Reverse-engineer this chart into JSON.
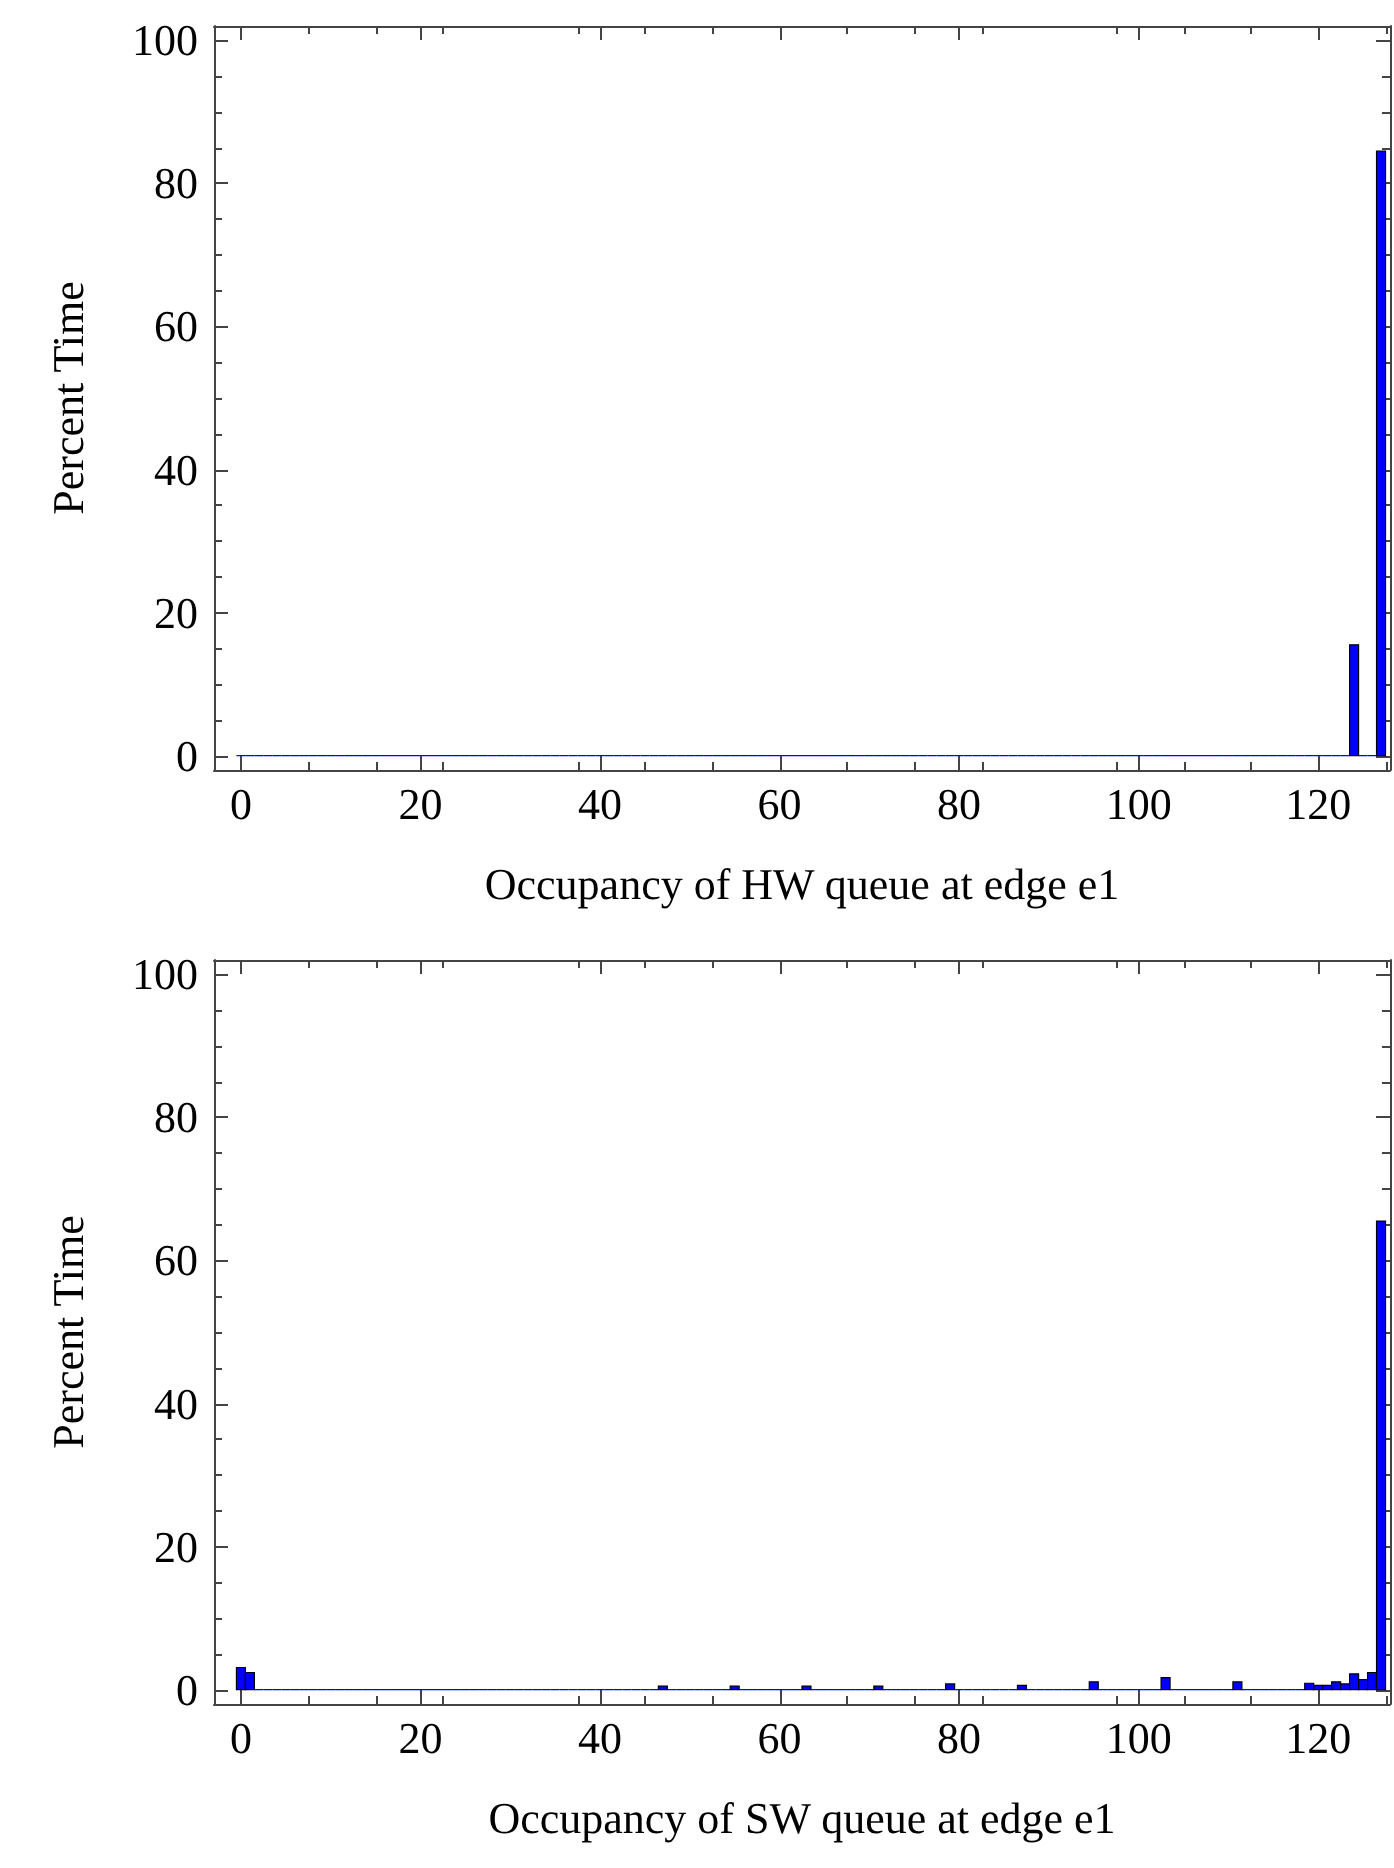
{
  "chart_data": [
    {
      "type": "histogram",
      "xlabel": "Occupancy of HW queue at edge e1",
      "ylabel": "Percent Time",
      "color": "#0000ff",
      "bins": [
        -0.5,
        0.5,
        1.5,
        2.5,
        3.5,
        4.5,
        5.5,
        6.5,
        7.5,
        8.5,
        9.5,
        10.5,
        11.5,
        12.5,
        13.5,
        14.5,
        15.5,
        16.5,
        17.5,
        18.5,
        19.5,
        20.5,
        21.5,
        22.5,
        23.5,
        24.5,
        25.5,
        26.5,
        27.5,
        28.5,
        29.5,
        30.5,
        31.5,
        32.5,
        33.5,
        34.5,
        35.5,
        36.5,
        37.5,
        38.5,
        39.5,
        40.5,
        41.5,
        42.5,
        43.5,
        44.5,
        45.5,
        46.5,
        47.5,
        48.5,
        49.5,
        50.5,
        51.5,
        52.5,
        53.5,
        54.5,
        55.5,
        56.5,
        57.5,
        58.5,
        59.5,
        60.5,
        61.5,
        62.5,
        63.5,
        64.5,
        65.5,
        66.5,
        67.5,
        68.5,
        69.5,
        70.5,
        71.5,
        72.5,
        73.5,
        74.5,
        75.5,
        76.5,
        77.5,
        78.5,
        79.5,
        80.5,
        81.5,
        82.5,
        83.5,
        84.5,
        85.5,
        86.5,
        87.5,
        88.5,
        89.5,
        90.5,
        91.5,
        92.5,
        93.5,
        94.5,
        95.5,
        96.5,
        97.5,
        98.5,
        99.5,
        100.5,
        101.5,
        102.5,
        103.5,
        104.5,
        105.5,
        106.5,
        107.5,
        108.5,
        109.5,
        110.5,
        111.5,
        112.5,
        113.5,
        114.5,
        115.5,
        116.5,
        117.5,
        118.5,
        119.5,
        120.5,
        121.5,
        122.5,
        123.5,
        124.5,
        125.5,
        126.5,
        127.5
      ],
      "values": [
        0,
        0,
        0,
        0,
        0,
        0,
        0,
        0,
        0,
        0,
        0,
        0,
        0,
        0,
        0,
        0,
        0,
        0,
        0,
        0,
        0,
        0,
        0,
        0,
        0,
        0,
        0,
        0,
        0,
        0,
        0,
        0,
        0,
        0,
        0,
        0,
        0,
        0,
        0,
        0,
        0,
        0,
        0,
        0,
        0,
        0,
        0,
        0,
        0,
        0,
        0,
        0,
        0,
        0,
        0,
        0,
        0,
        0,
        0,
        0,
        0,
        0,
        0,
        0,
        0,
        0,
        0,
        0,
        0,
        0,
        0,
        0,
        0,
        0,
        0,
        0,
        0,
        0,
        0,
        0,
        0,
        0,
        0,
        0,
        0,
        0,
        0,
        0,
        0,
        0,
        0,
        0,
        0,
        0,
        0,
        0,
        0,
        0,
        0,
        0,
        0,
        0,
        0,
        0,
        0,
        0,
        0,
        0,
        0,
        0,
        0,
        0,
        0,
        0,
        0,
        0,
        0,
        0,
        0,
        0,
        0,
        0,
        0,
        0,
        15.5,
        0,
        0,
        84.5
      ],
      "xlim": [
        -3,
        128
      ],
      "xticks": [
        0,
        20,
        40,
        60,
        80,
        100,
        120
      ],
      "ylim": [
        -2,
        102
      ],
      "yticks": [
        0,
        20,
        40,
        60,
        80,
        100
      ]
    },
    {
      "type": "histogram",
      "xlabel": "Occupancy of SW queue at edge e1",
      "ylabel": "Percent Time",
      "color": "#0000ff",
      "bins": [
        -0.5,
        0.5,
        1.5,
        2.5,
        3.5,
        4.5,
        5.5,
        6.5,
        7.5,
        8.5,
        9.5,
        10.5,
        11.5,
        12.5,
        13.5,
        14.5,
        15.5,
        16.5,
        17.5,
        18.5,
        19.5,
        20.5,
        21.5,
        22.5,
        23.5,
        24.5,
        25.5,
        26.5,
        27.5,
        28.5,
        29.5,
        30.5,
        31.5,
        32.5,
        33.5,
        34.5,
        35.5,
        36.5,
        37.5,
        38.5,
        39.5,
        40.5,
        41.5,
        42.5,
        43.5,
        44.5,
        45.5,
        46.5,
        47.5,
        48.5,
        49.5,
        50.5,
        51.5,
        52.5,
        53.5,
        54.5,
        55.5,
        56.5,
        57.5,
        58.5,
        59.5,
        60.5,
        61.5,
        62.5,
        63.5,
        64.5,
        65.5,
        66.5,
        67.5,
        68.5,
        69.5,
        70.5,
        71.5,
        72.5,
        73.5,
        74.5,
        75.5,
        76.5,
        77.5,
        78.5,
        79.5,
        80.5,
        81.5,
        82.5,
        83.5,
        84.5,
        85.5,
        86.5,
        87.5,
        88.5,
        89.5,
        90.5,
        91.5,
        92.5,
        93.5,
        94.5,
        95.5,
        96.5,
        97.5,
        98.5,
        99.5,
        100.5,
        101.5,
        102.5,
        103.5,
        104.5,
        105.5,
        106.5,
        107.5,
        108.5,
        109.5,
        110.5,
        111.5,
        112.5,
        113.5,
        114.5,
        115.5,
        116.5,
        117.5,
        118.5,
        119.5,
        120.5,
        121.5,
        122.5,
        123.5,
        124.5,
        125.5,
        126.5,
        127.5
      ],
      "values": [
        3.1,
        2.4,
        0,
        0,
        0,
        0,
        0,
        0,
        0,
        0,
        0,
        0,
        0,
        0,
        0,
        0,
        0,
        0,
        0,
        0,
        0,
        0,
        0,
        0,
        0,
        0,
        0,
        0,
        0,
        0,
        0,
        0,
        0,
        0,
        0,
        0,
        0,
        0,
        0,
        0,
        0,
        0,
        0,
        0,
        0,
        0,
        0,
        0.5,
        0,
        0,
        0,
        0,
        0,
        0,
        0,
        0.5,
        0,
        0,
        0,
        0,
        0,
        0,
        0,
        0.5,
        0,
        0,
        0,
        0,
        0,
        0,
        0,
        0.5,
        0,
        0,
        0,
        0,
        0,
        0,
        0,
        0.8,
        0,
        0,
        0,
        0,
        0,
        0,
        0,
        0.6,
        0,
        0,
        0,
        0,
        0,
        0,
        0,
        1.1,
        0,
        0,
        0,
        0,
        0,
        0,
        0,
        1.7,
        0,
        0,
        0,
        0,
        0,
        0,
        0,
        1.1,
        0,
        0,
        0,
        0,
        0,
        0,
        0,
        0.9,
        0.6,
        0.6,
        1.1,
        0.8,
        2.2,
        1.4,
        2.4,
        65.5
      ],
      "xlim": [
        -3,
        128
      ],
      "xticks": [
        0,
        20,
        40,
        60,
        80,
        100,
        120
      ],
      "ylim": [
        -2,
        102
      ],
      "yticks": [
        0,
        20,
        40,
        60,
        80,
        100
      ]
    }
  ]
}
